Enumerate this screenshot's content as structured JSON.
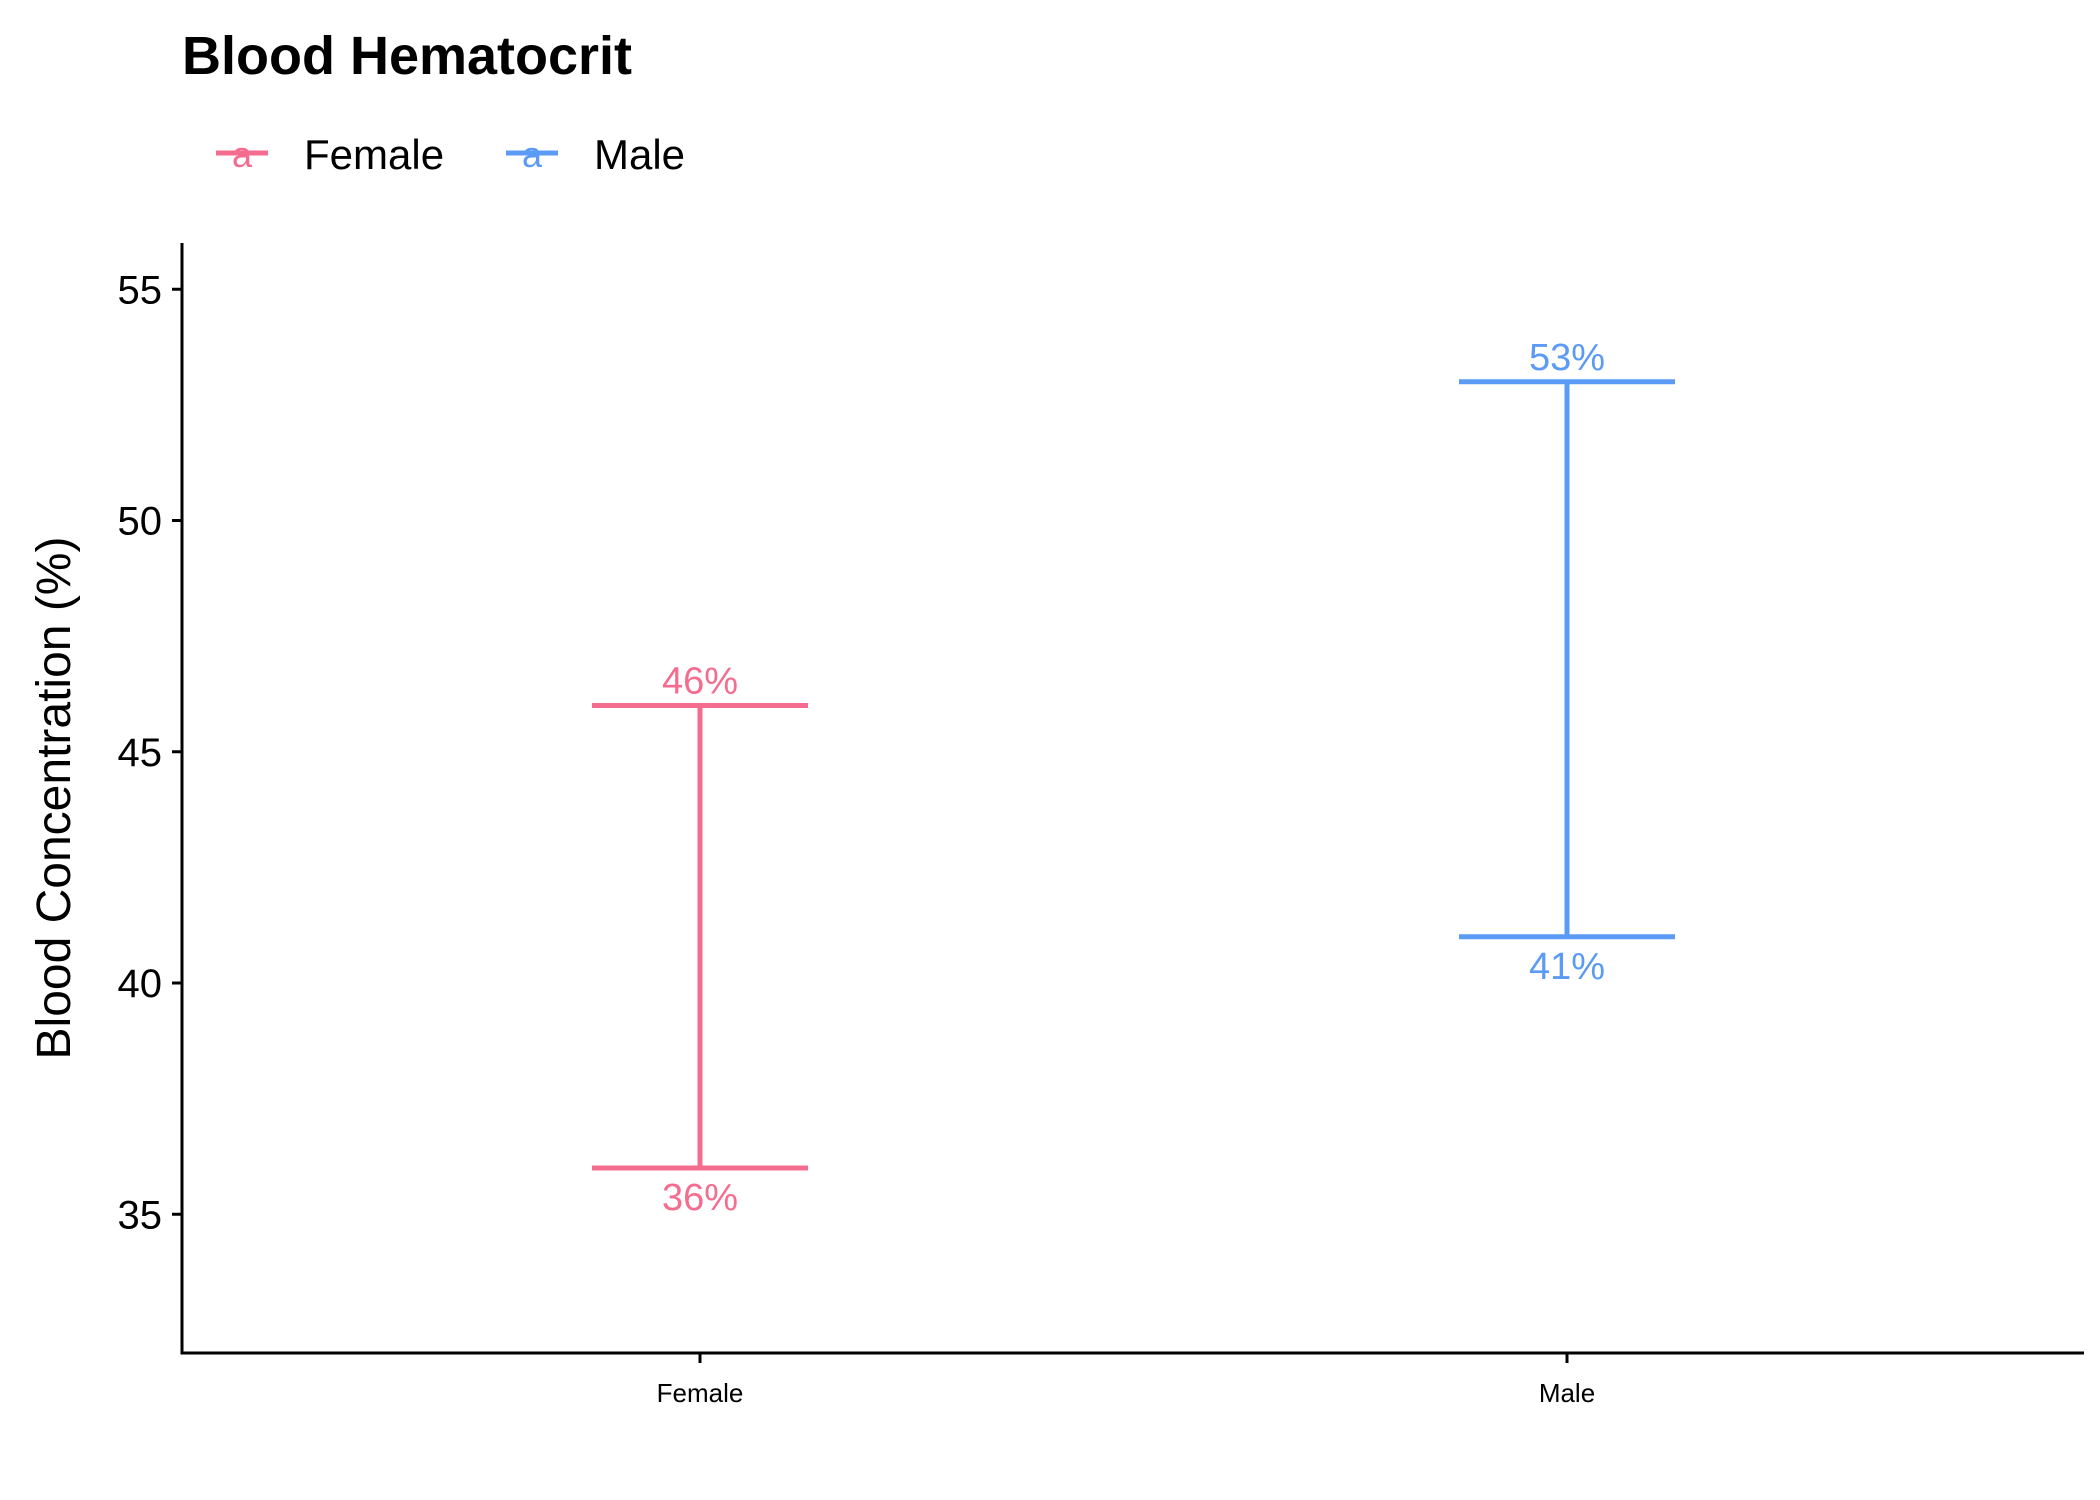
{
  "chart_data": {
    "type": "errorbar",
    "title": "Blood Hematocrit",
    "xlabel": "",
    "ylabel": "Blood Concentration (%)",
    "ylim": [
      32,
      56
    ],
    "yticks": [
      35,
      40,
      45,
      50,
      55
    ],
    "categories": [
      "Female",
      "Male"
    ],
    "legend": {
      "position": "top-left",
      "key_glyph": "a"
    },
    "grid": false,
    "series": [
      {
        "name": "Female",
        "category": "Female",
        "low": 36,
        "high": 46,
        "low_label": "36%",
        "high_label": "46%",
        "color": "#F8766D"
      },
      {
        "name": "Male",
        "category": "Male",
        "low": 41,
        "high": 53,
        "low_label": "41%",
        "high_label": "53%",
        "color": "#619CFF"
      }
    ],
    "colors": {
      "Female": "#F46D8F",
      "Male": "#5B9BF5"
    }
  }
}
